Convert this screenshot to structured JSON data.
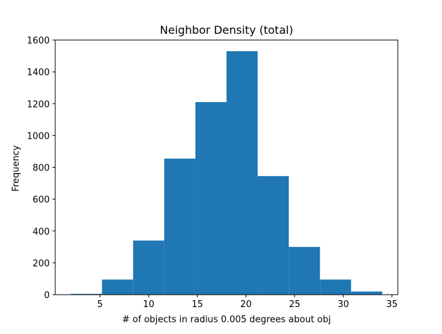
{
  "chart_data": {
    "type": "bar",
    "title": "Neighbor Density (total)",
    "xlabel": "# of objects in radius 0.005 degrees about obj",
    "ylabel": "Frequency",
    "xlim": [
      0.4,
      35.6
    ],
    "ylim": [
      0,
      1600
    ],
    "xticks": [
      5,
      10,
      15,
      20,
      25,
      30,
      35
    ],
    "yticks": [
      0,
      200,
      400,
      600,
      800,
      1000,
      1200,
      1400,
      1600
    ],
    "grid": false,
    "bar_color": "#1f77b4",
    "bins": [
      {
        "x0": 2.0,
        "x1": 5.2,
        "value": 5
      },
      {
        "x0": 5.2,
        "x1": 8.4,
        "value": 95
      },
      {
        "x0": 8.4,
        "x1": 11.6,
        "value": 340
      },
      {
        "x0": 11.6,
        "x1": 14.8,
        "value": 855
      },
      {
        "x0": 14.8,
        "x1": 18.0,
        "value": 1210
      },
      {
        "x0": 18.0,
        "x1": 21.2,
        "value": 1530
      },
      {
        "x0": 21.2,
        "x1": 24.4,
        "value": 745
      },
      {
        "x0": 24.4,
        "x1": 27.6,
        "value": 300
      },
      {
        "x0": 27.6,
        "x1": 30.8,
        "value": 95
      },
      {
        "x0": 30.8,
        "x1": 34.0,
        "value": 20
      }
    ]
  }
}
